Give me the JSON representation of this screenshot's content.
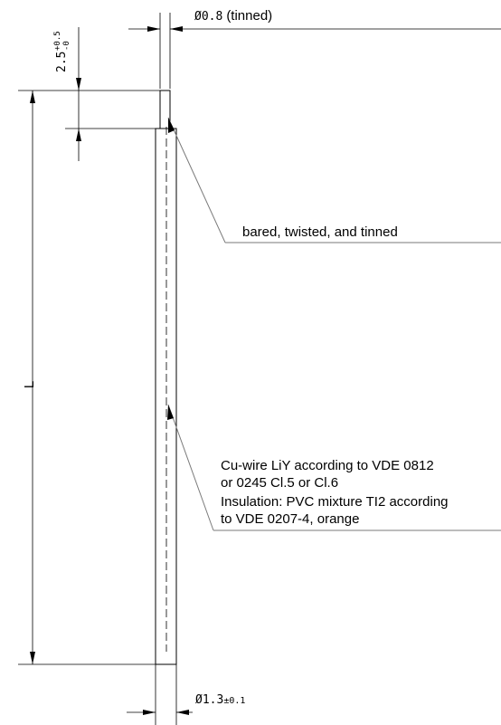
{
  "dimensions": {
    "tinned_diameter": {
      "symbol": "Ø",
      "value": "0.8",
      "note": "(tinned)"
    },
    "bared_length": {
      "value": "2.5",
      "upper_tol": "+0.5",
      "lower_tol": "-0"
    },
    "overall_diameter": {
      "symbol": "Ø",
      "value": "1.3",
      "tol": "±0.1"
    },
    "length": "L"
  },
  "callouts": {
    "tinned_end": "bared, twisted, and tinned",
    "conductor_line1": "Cu-wire LiY according to VDE 0812",
    "conductor_line2": "or 0245 Cl.5 or Cl.6",
    "insulation_line1": "Insulation: PVC mixture TI2 according",
    "insulation_line2": "to VDE 0207-4, orange"
  }
}
